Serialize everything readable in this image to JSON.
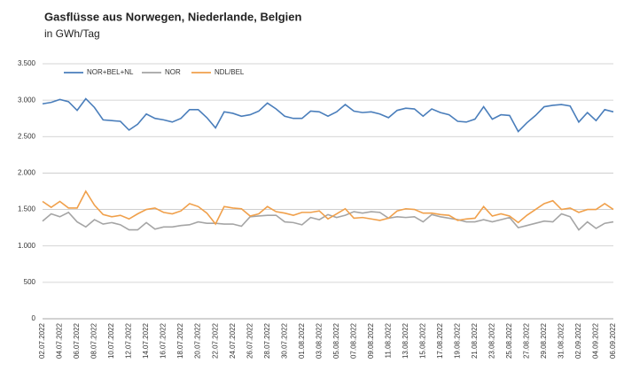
{
  "chart_data": {
    "type": "line",
    "title": "Gasflüsse aus Norwegen, Niederlande, Belgien",
    "subtitle": "in GWh/Tag",
    "categories": [
      "02.07.2022",
      null,
      "04.07.2022",
      null,
      "06.07.2022",
      null,
      "08.07.2022",
      null,
      "10.07.2022",
      null,
      "12.07.2022",
      null,
      "14.07.2022",
      null,
      "16.07.2022",
      null,
      "18.07.2022",
      null,
      "20.07.2022",
      null,
      "22.07.2022",
      null,
      "24.07.2022",
      null,
      "26.07.2022",
      null,
      "28.07.2022",
      null,
      "30.07.2022",
      null,
      "01.08.2022",
      null,
      "03.08.2022",
      null,
      "05.08.2022",
      null,
      "07.08.2022",
      null,
      "09.08.2022",
      null,
      "11.08.2022",
      null,
      "13.08.2022",
      null,
      "15.08.2022",
      null,
      "17.08.2022",
      null,
      "19.08.2022",
      null,
      "21.08.2022",
      null,
      "23.08.2022",
      null,
      "25.08.2022",
      null,
      "27.08.2022",
      null,
      "29.08.2022",
      null,
      "31.08.2022",
      null,
      "02.09.2022",
      null,
      "04.09.2022",
      null,
      "06.09.2022"
    ],
    "series": [
      {
        "name": "NOR+BEL+NL",
        "color": "#4a7ebb",
        "values": [
          2950,
          2970,
          3010,
          2980,
          2860,
          3020,
          2900,
          2730,
          2720,
          2710,
          2590,
          2670,
          2810,
          2750,
          2730,
          2700,
          2750,
          2870,
          2870,
          2760,
          2620,
          2840,
          2820,
          2780,
          2800,
          2850,
          2960,
          2880,
          2780,
          2750,
          2750,
          2850,
          2840,
          2780,
          2840,
          2940,
          2850,
          2830,
          2840,
          2810,
          2760,
          2860,
          2890,
          2880,
          2780,
          2880,
          2830,
          2800,
          2710,
          2700,
          2740,
          2910,
          2740,
          2800,
          2790,
          2570,
          2690,
          2790,
          2910,
          2930,
          2940,
          2920,
          2700,
          2830,
          2720,
          2870,
          2840
        ]
      },
      {
        "name": "NOR",
        "color": "#a5a5a5",
        "values": [
          1340,
          1440,
          1400,
          1460,
          1330,
          1260,
          1360,
          1300,
          1320,
          1290,
          1220,
          1220,
          1320,
          1230,
          1260,
          1260,
          1280,
          1290,
          1330,
          1310,
          1310,
          1300,
          1300,
          1270,
          1400,
          1410,
          1420,
          1420,
          1330,
          1320,
          1290,
          1390,
          1360,
          1430,
          1390,
          1420,
          1470,
          1450,
          1470,
          1460,
          1380,
          1400,
          1390,
          1400,
          1330,
          1430,
          1400,
          1380,
          1360,
          1330,
          1330,
          1360,
          1330,
          1360,
          1390,
          1250,
          1280,
          1310,
          1340,
          1330,
          1440,
          1400,
          1220,
          1330,
          1240,
          1310,
          1330
        ]
      },
      {
        "name": "NDL/BEL",
        "color": "#f0a04b",
        "values": [
          1610,
          1530,
          1610,
          1520,
          1520,
          1750,
          1560,
          1430,
          1400,
          1420,
          1370,
          1440,
          1500,
          1520,
          1460,
          1440,
          1480,
          1580,
          1540,
          1450,
          1300,
          1540,
          1520,
          1510,
          1410,
          1440,
          1540,
          1470,
          1450,
          1420,
          1460,
          1460,
          1480,
          1370,
          1440,
          1510,
          1380,
          1390,
          1370,
          1350,
          1380,
          1480,
          1510,
          1500,
          1450,
          1450,
          1430,
          1420,
          1350,
          1370,
          1380,
          1540,
          1410,
          1440,
          1410,
          1320,
          1420,
          1500,
          1580,
          1620,
          1500,
          1520,
          1460,
          1500,
          1500,
          1580,
          1500
        ]
      }
    ],
    "ylim": [
      0,
      3500
    ],
    "yticks": [
      0,
      500,
      {
        "value": 1000,
        "label": "1.000"
      },
      {
        "value": 1500,
        "label": "1.500"
      },
      {
        "value": 2000,
        "label": "2.000"
      },
      {
        "value": 2500,
        "label": "2.500"
      },
      {
        "value": 3000,
        "label": "3.000"
      },
      {
        "value": 3500,
        "label": "3.500"
      }
    ],
    "grid": true,
    "legend": "top-left"
  }
}
